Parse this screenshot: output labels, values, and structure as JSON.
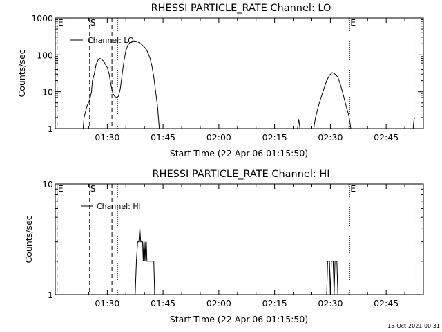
{
  "footer": "15-Oct-2021 00:31",
  "chart_data": [
    {
      "type": "line",
      "title": "RHESSI PARTICLE_RATE Channel: LO",
      "xlabel": "Start Time (22-Apr-06 01:15:50)",
      "ylabel": "Counts/sec",
      "yscale": "log",
      "xlim": [
        "01:16:00",
        "02:55:00"
      ],
      "ylim": [
        1,
        1000
      ],
      "x_ticks": [
        "01:30",
        "01:45",
        "02:00",
        "02:15",
        "02:30",
        "02:45"
      ],
      "y_ticks": [
        {
          "value": 1,
          "label": "1"
        },
        {
          "value": 10,
          "label": "10"
        },
        {
          "value": 100,
          "label": "100"
        },
        {
          "value": 1000,
          "label": "1000"
        }
      ],
      "legend": {
        "label": "Channel: LO",
        "position": "top-left"
      },
      "vlines": [
        {
          "x": "01:16:30",
          "style": "dashed",
          "label": "E"
        },
        {
          "x": "01:25:15",
          "style": "dashed",
          "label": "S"
        },
        {
          "x": "01:31:15",
          "style": "dashed",
          "label": ""
        },
        {
          "x": "01:32:45",
          "style": "dotted",
          "label": ""
        },
        {
          "x": "02:35:10",
          "style": "dotted",
          "label": "E"
        },
        {
          "x": "02:52:30",
          "style": "dotted",
          "label": ""
        }
      ],
      "series": [
        {
          "name": "Channel: LO",
          "segments": [
            [
              [
                "01:23:30",
                1
              ],
              [
                "01:23:45",
                2
              ],
              [
                "01:24:30",
                4
              ],
              [
                "01:25:15",
                6
              ],
              [
                "01:25:45",
                10
              ],
              [
                "01:26:00",
                20
              ],
              [
                "01:26:30",
                30
              ],
              [
                "01:27:00",
                55
              ],
              [
                "01:27:30",
                72
              ],
              [
                "01:28:00",
                80
              ],
              [
                "01:28:30",
                75
              ],
              [
                "01:29:00",
                68
              ],
              [
                "01:29:30",
                55
              ],
              [
                "01:30:00",
                45
              ],
              [
                "01:30:30",
                30
              ],
              [
                "01:31:00",
                15
              ],
              [
                "01:31:30",
                9
              ],
              [
                "01:32:00",
                7.5
              ],
              [
                "01:32:30",
                7
              ],
              [
                "01:33:00",
                7.5
              ],
              [
                "01:33:30",
                12
              ],
              [
                "01:34:00",
                30
              ],
              [
                "01:34:30",
                70
              ],
              [
                "01:35:00",
                130
              ],
              [
                "01:35:30",
                180
              ],
              [
                "01:36:00",
                210
              ],
              [
                "01:36:30",
                230
              ],
              [
                "01:37:00",
                240
              ],
              [
                "01:37:30",
                235
              ],
              [
                "01:38:00",
                230
              ],
              [
                "01:38:30",
                215
              ],
              [
                "01:39:00",
                200
              ],
              [
                "01:39:30",
                180
              ],
              [
                "01:40:00",
                160
              ],
              [
                "01:40:30",
                140
              ],
              [
                "01:41:00",
                110
              ],
              [
                "01:41:30",
                80
              ],
              [
                "01:42:00",
                50
              ],
              [
                "01:42:30",
                25
              ],
              [
                "01:43:00",
                10
              ],
              [
                "01:43:30",
                4
              ],
              [
                "01:43:45",
                2
              ],
              [
                "01:44:00",
                1
              ]
            ],
            [
              [
                "02:21:10",
                1
              ],
              [
                "02:21:30",
                1.8
              ],
              [
                "02:21:50",
                1
              ]
            ],
            [
              [
                "02:25:30",
                1
              ],
              [
                "02:26:00",
                2
              ],
              [
                "02:26:45",
                4
              ],
              [
                "02:27:30",
                7
              ],
              [
                "02:28:15",
                12
              ],
              [
                "02:29:00",
                20
              ],
              [
                "02:29:45",
                28
              ],
              [
                "02:30:30",
                33
              ],
              [
                "02:31:15",
                30
              ],
              [
                "02:32:00",
                25
              ],
              [
                "02:32:45",
                15
              ],
              [
                "02:33:30",
                8
              ],
              [
                "02:34:15",
                4
              ],
              [
                "02:35:00",
                2.2
              ],
              [
                "02:35:30",
                1
              ]
            ],
            [
              [
                "02:52:15",
                1
              ],
              [
                "02:52:30",
                1.8
              ],
              [
                "02:52:45",
                2
              ]
            ]
          ]
        }
      ]
    },
    {
      "type": "line",
      "title": "RHESSI PARTICLE_RATE Channel: HI",
      "xlabel": "Start Time (22-Apr-06 01:15:50)",
      "ylabel": "Counts/sec",
      "yscale": "log",
      "xlim": [
        "01:16:00",
        "02:55:00"
      ],
      "ylim": [
        1,
        10
      ],
      "x_ticks": [
        "01:30",
        "01:45",
        "02:00",
        "02:15",
        "02:30",
        "02:45"
      ],
      "y_ticks": [
        {
          "value": 1,
          "label": "1"
        },
        {
          "value": 10,
          "label": "10"
        }
      ],
      "legend": {
        "label": "Channel: HI",
        "position": "top-left"
      },
      "vlines": [
        {
          "x": "01:16:30",
          "style": "dashed",
          "label": "E"
        },
        {
          "x": "01:25:15",
          "style": "dashed",
          "label": "S"
        },
        {
          "x": "01:31:15",
          "style": "dashed",
          "label": ""
        },
        {
          "x": "01:32:45",
          "style": "dotted",
          "label": ""
        },
        {
          "x": "02:35:10",
          "style": "dotted",
          "label": "E"
        },
        {
          "x": "02:52:30",
          "style": "dotted",
          "label": ""
        }
      ],
      "series": [
        {
          "name": "Channel: HI",
          "segments": [
            [
              [
                "01:37:30",
                1
              ],
              [
                "01:37:50",
                2
              ],
              [
                "01:38:10",
                3
              ],
              [
                "01:38:30",
                3
              ],
              [
                "01:38:45",
                4
              ],
              [
                "01:39:00",
                3
              ],
              [
                "01:39:20",
                3
              ],
              [
                "01:39:30",
                3
              ],
              [
                "01:39:40",
                2
              ],
              [
                "01:39:50",
                3
              ],
              [
                "01:40:00",
                2
              ],
              [
                "01:40:10",
                3
              ],
              [
                "01:40:20",
                2
              ],
              [
                "01:40:30",
                3
              ],
              [
                "01:40:40",
                2
              ],
              [
                "01:41:30",
                2
              ],
              [
                "01:42:30",
                2
              ],
              [
                "01:42:45",
                1
              ]
            ],
            [
              [
                "02:29:00",
                1
              ],
              [
                "02:29:15",
                2
              ],
              [
                "02:29:45",
                2
              ],
              [
                "02:30:00",
                1
              ],
              [
                "02:30:15",
                2
              ],
              [
                "02:30:45",
                2
              ],
              [
                "02:31:00",
                1
              ],
              [
                "02:31:15",
                2
              ],
              [
                "02:31:45",
                2
              ],
              [
                "02:32:00",
                1
              ]
            ]
          ]
        }
      ]
    }
  ]
}
